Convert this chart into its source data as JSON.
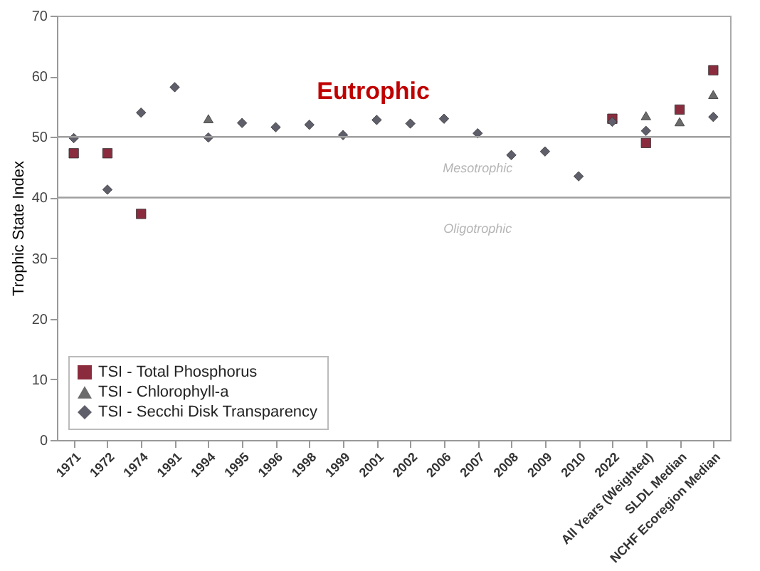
{
  "chart_data": {
    "type": "scatter",
    "ylabel": "Trophic State Index",
    "categories": [
      "1971",
      "1972",
      "1974",
      "1991",
      "1994",
      "1995",
      "1996",
      "1998",
      "1999",
      "2001",
      "2002",
      "2006",
      "2007",
      "2008",
      "2009",
      "2010",
      "2022",
      "All Years (Weighted)",
      "SLDL Median",
      "NCHF Ecoregion Median"
    ],
    "series": [
      {
        "name": "TSI - Total Phosphorus",
        "color": "#8b2c3e",
        "marker": "square",
        "values": [
          47.3,
          47.3,
          37.3,
          null,
          null,
          null,
          null,
          null,
          null,
          null,
          null,
          null,
          null,
          null,
          null,
          null,
          53,
          49,
          54.5,
          61
        ]
      },
      {
        "name": "TSI - Chlorophyll-a",
        "color": "#6b6b6b",
        "marker": "triangle",
        "values": [
          null,
          null,
          null,
          null,
          53,
          null,
          null,
          null,
          null,
          null,
          null,
          null,
          null,
          null,
          null,
          null,
          null,
          53.5,
          52.5,
          57
        ]
      },
      {
        "name": "TSI - Secchi Disk Transparency",
        "color": "#5f5f6b",
        "marker": "diamond",
        "values": [
          49.8,
          41.3,
          54,
          58.2,
          49.9,
          52.3,
          51.6,
          52,
          50.3,
          52.8,
          52.2,
          53,
          50.6,
          47,
          47.6,
          43.5,
          52.5,
          51,
          null,
          53.3
        ]
      }
    ],
    "ylim": [
      0,
      70
    ],
    "yticks": [
      0,
      10,
      20,
      30,
      40,
      50,
      60,
      70
    ],
    "ref_lines": [
      {
        "axis": "y",
        "value": 50,
        "label": "Mesotrophic",
        "color": "#a0a0a0"
      },
      {
        "axis": "y",
        "value": 40,
        "label": "Oligotrophic",
        "color": "#a0a0a0"
      }
    ],
    "annotations": [
      "Eutrophic"
    ],
    "legend": "bottom left",
    "grid": false
  }
}
